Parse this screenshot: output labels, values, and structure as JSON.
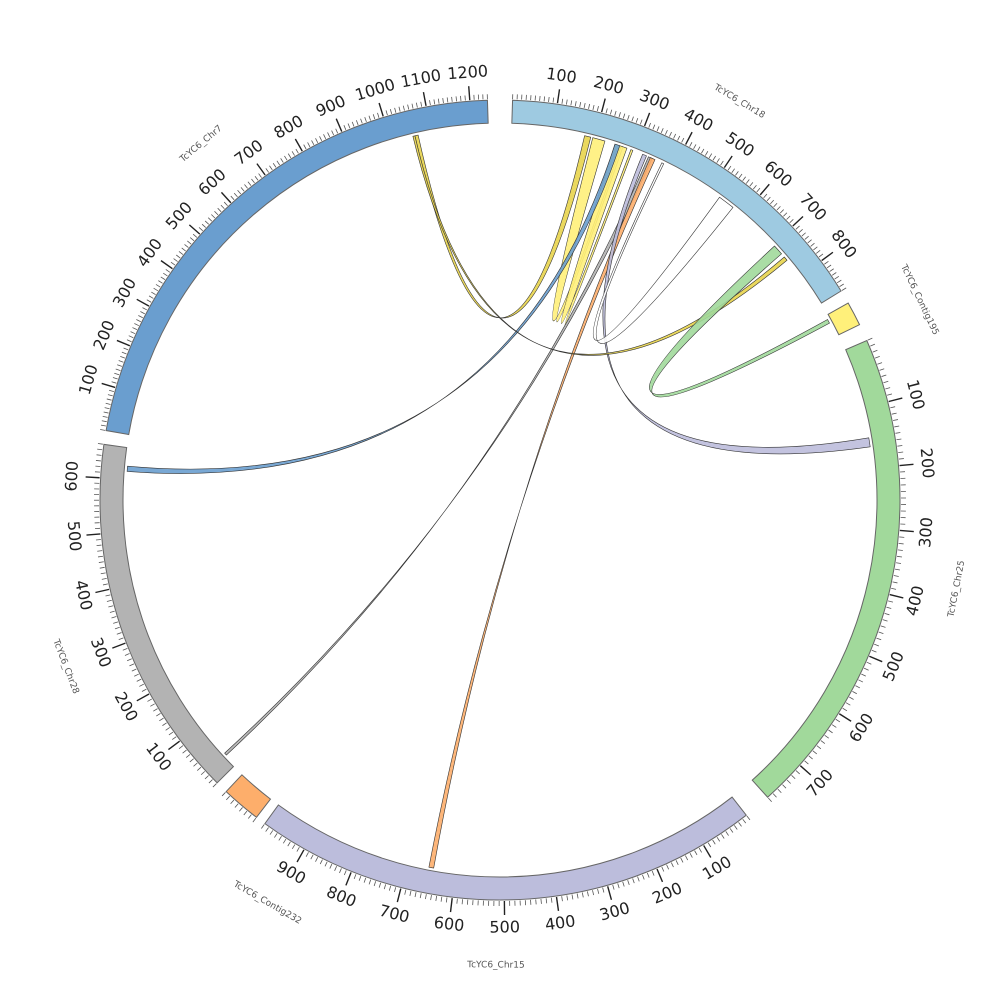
{
  "chromosomes": [
    {
      "id": "chr18",
      "label": "TcYC6_Chr18",
      "length": 880,
      "color": "#9ecae1",
      "labels": [
        "100",
        "200",
        "300",
        "400",
        "500",
        "600",
        "700",
        "800"
      ],
      "label_values": [
        100,
        200,
        300,
        400,
        500,
        600,
        700,
        800
      ]
    },
    {
      "id": "contig195",
      "label": "TcYC6_Contig195",
      "length": 55,
      "color": "#fff07a",
      "labels": [],
      "label_values": []
    },
    {
      "id": "chr25",
      "label": "TcYC6_Chr25",
      "length": 770,
      "color": "#a1d99b",
      "labels": [
        "100",
        "200",
        "300",
        "400",
        "500",
        "600",
        "700"
      ],
      "label_values": [
        100,
        200,
        300,
        400,
        500,
        600,
        700
      ]
    },
    {
      "id": "chr15",
      "label": "TcYC6_Chr15",
      "length": 990,
      "color": "#bcbddc",
      "labels": [
        "100",
        "200",
        "300",
        "400",
        "500",
        "600",
        "700",
        "800",
        "900"
      ],
      "label_values": [
        100,
        200,
        300,
        400,
        500,
        600,
        700,
        800,
        900
      ]
    },
    {
      "id": "contig232",
      "label": "TcYC6_Contig232",
      "length": 70,
      "color": "#fdae6b",
      "labels": [],
      "label_values": []
    },
    {
      "id": "chr28",
      "label": "TcYC6_Chr28",
      "length": 660,
      "color": "#b3b3b3",
      "labels": [
        "100",
        "200",
        "300",
        "400",
        "500",
        "600"
      ],
      "label_values": [
        100,
        200,
        300,
        400,
        500,
        600
      ]
    },
    {
      "id": "chr7",
      "label": "TcYC6_Chr7",
      "length": 1240,
      "color": "#6a9ecf",
      "labels": [
        "100",
        "200",
        "300",
        "400",
        "500",
        "600",
        "700",
        "800",
        "900",
        "1000",
        "1100",
        "1200"
      ],
      "label_values": [
        100,
        200,
        300,
        400,
        500,
        600,
        700,
        800,
        900,
        1000,
        1100,
        1200
      ]
    }
  ],
  "links": [
    {
      "src": [
        "chr18",
        175,
        190
      ],
      "dst": [
        "chr7",
        1060,
        1068
      ],
      "color": "#e8d44d"
    },
    {
      "src": [
        "chr18",
        195,
        225
      ],
      "dst": [
        "chr18",
        265,
        270
      ],
      "color": "#fff07a"
    },
    {
      "src": [
        "chr18",
        250,
        280
      ],
      "dst": [
        "chr18",
        290,
        295
      ],
      "color": "#fff07a"
    },
    {
      "src": [
        "chr18",
        250,
        262
      ],
      "dst": [
        "chr28",
        615,
        625
      ],
      "color": "#6a9ecf"
    },
    {
      "src": [
        "chr18",
        335,
        345
      ],
      "dst": [
        "chr28",
        25,
        30
      ],
      "color": "#b3b3b3"
    },
    {
      "src": [
        "chr18",
        340,
        352
      ],
      "dst": [
        "chr15",
        645,
        655
      ],
      "color": "#fdae6b"
    },
    {
      "src": [
        "chr18",
        320,
        330
      ],
      "dst": [
        "chr25",
        150,
        165
      ],
      "color": "#bcbddc"
    },
    {
      "src": [
        "chr18",
        530,
        570
      ],
      "dst": [
        "chr18",
        370,
        375
      ],
      "color": "#ffffff"
    },
    {
      "src": [
        "chr18",
        740,
        750
      ],
      "dst": [
        "chr7",
        1055,
        1060
      ],
      "color": "#e8d44d"
    },
    {
      "src": [
        "chr18",
        705,
        730
      ],
      "dst": [
        "contig195",
        10,
        20
      ],
      "color": "#a1d99b"
    }
  ]
}
